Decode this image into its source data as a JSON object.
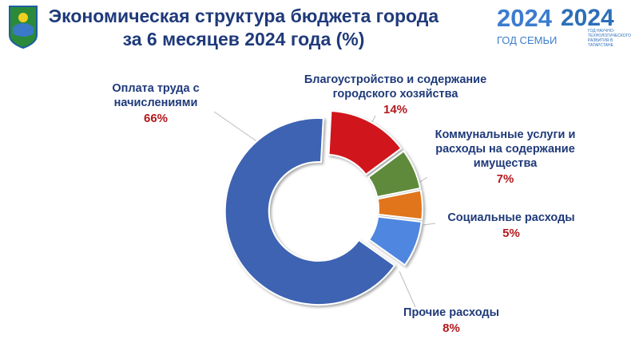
{
  "chart_data": {
    "type": "donut",
    "title": "Экономическая структура бюджета города за 6 месяцев 2024 года (%)",
    "categories": [
      "Благоустройство и содержание городского хозяйства",
      "Коммунальные услуги и расходы на содержание имущества",
      "Социальные расходы",
      "Прочие расходы",
      "Оплата труда с начислениями"
    ],
    "values": [
      14,
      7,
      5,
      8,
      66
    ],
    "value_labels": [
      "14%",
      "7%",
      "5%",
      "8%",
      "66%"
    ],
    "colors": [
      "#d0161b",
      "#5f8a3a",
      "#e0741f",
      "#4f86e0",
      "#3d64b2"
    ]
  },
  "logos": {
    "year": "2024",
    "family": "ГОД СЕМЬИ",
    "science": "ГОД НАУЧНО-ТЕХНОЛОГИЧЕСКОГО РАЗВИТИЯ В ТАТАРСТАНЕ"
  }
}
